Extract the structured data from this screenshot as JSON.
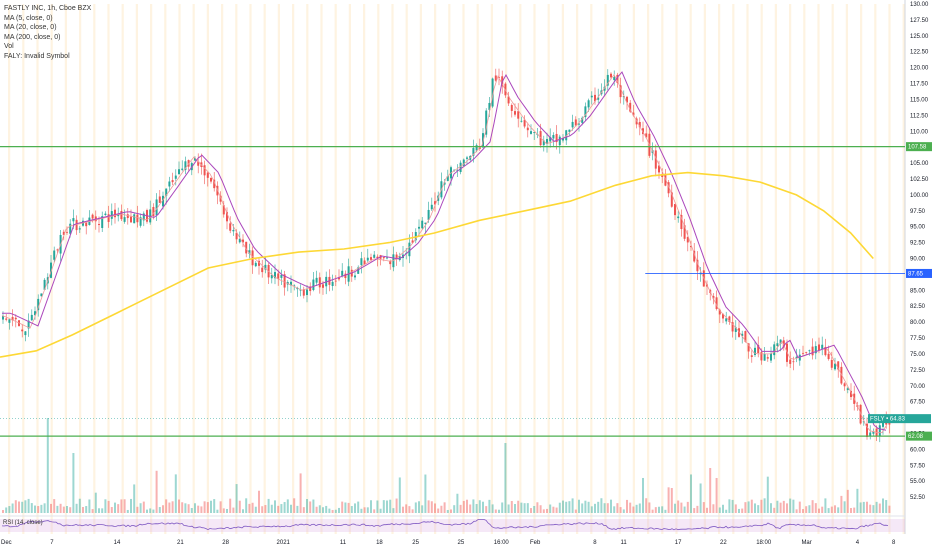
{
  "chart_data": {
    "type": "candlestick",
    "symbol_title": "FASTLY INC, 1h, Cboe BZX",
    "legend": [
      "MA (5, close, 0)",
      "MA (20, close, 0)",
      "MA (200, close, 0)",
      "Vol",
      "FALY: Invalid Symbol"
    ],
    "ylim": [
      50,
      130
    ],
    "price_ticks": [
      "130.00",
      "127.50",
      "125.00",
      "122.50",
      "120.00",
      "117.50",
      "115.00",
      "112.50",
      "110.00",
      "107.50",
      "105.00",
      "102.50",
      "100.00",
      "97.50",
      "95.00",
      "92.50",
      "90.00",
      "87.50",
      "85.00",
      "82.50",
      "80.00",
      "77.50",
      "75.00",
      "72.50",
      "70.00",
      "67.50",
      "65.00",
      "62.50",
      "60.00",
      "57.50",
      "55.00",
      "52.50"
    ],
    "x_ticks": [
      {
        "label": "Dec",
        "pos": 0.0
      },
      {
        "label": "7",
        "pos": 0.06
      },
      {
        "label": "14",
        "pos": 0.13
      },
      {
        "label": "21",
        "pos": 0.2
      },
      {
        "label": "28",
        "pos": 0.25
      },
      {
        "label": "2021",
        "pos": 0.31
      },
      {
        "label": "11",
        "pos": 0.38
      },
      {
        "label": "18",
        "pos": 0.42
      },
      {
        "label": "25",
        "pos": 0.46
      },
      {
        "label": "25",
        "pos": 0.51
      },
      {
        "label": "16:00",
        "pos": 0.55
      },
      {
        "label": "Feb",
        "pos": 0.59
      },
      {
        "label": "8",
        "pos": 0.66
      },
      {
        "label": "11",
        "pos": 0.69
      },
      {
        "label": "17",
        "pos": 0.75
      },
      {
        "label": "22",
        "pos": 0.8
      },
      {
        "label": "18:00",
        "pos": 0.84
      },
      {
        "label": "Mar",
        "pos": 0.89
      },
      {
        "label": "4",
        "pos": 0.95
      },
      {
        "label": "8",
        "pos": 0.99
      }
    ],
    "horizontal_levels": [
      {
        "value": 107.58,
        "label": "107.58",
        "color": "#4caf50"
      },
      {
        "value": 87.65,
        "label": "87.65",
        "color": "#2962ff"
      },
      {
        "value": 62.08,
        "label": "62.08",
        "color": "#4caf50"
      }
    ],
    "last_price": {
      "value": 64.83,
      "label": "FSLY • 64.83",
      "color": "#26a69a"
    },
    "close_path": [
      [
        0.0,
        81
      ],
      [
        0.03,
        79
      ],
      [
        0.05,
        87
      ],
      [
        0.07,
        95
      ],
      [
        0.1,
        96
      ],
      [
        0.13,
        97
      ],
      [
        0.16,
        96
      ],
      [
        0.19,
        102
      ],
      [
        0.21,
        106
      ],
      [
        0.23,
        103
      ],
      [
        0.25,
        96
      ],
      [
        0.27,
        91
      ],
      [
        0.3,
        87
      ],
      [
        0.33,
        85
      ],
      [
        0.35,
        86
      ],
      [
        0.38,
        87.5
      ],
      [
        0.41,
        90
      ],
      [
        0.43,
        89.5
      ],
      [
        0.45,
        92
      ],
      [
        0.47,
        96
      ],
      [
        0.49,
        103
      ],
      [
        0.51,
        105
      ],
      [
        0.53,
        108
      ],
      [
        0.545,
        119
      ],
      [
        0.56,
        115
      ],
      [
        0.58,
        111
      ],
      [
        0.6,
        108
      ],
      [
        0.62,
        109
      ],
      [
        0.64,
        112
      ],
      [
        0.66,
        116
      ],
      [
        0.675,
        119
      ],
      [
        0.69,
        114
      ],
      [
        0.71,
        109
      ],
      [
        0.73,
        103
      ],
      [
        0.75,
        96
      ],
      [
        0.77,
        88
      ],
      [
        0.79,
        82
      ],
      [
        0.81,
        79
      ],
      [
        0.83,
        75
      ],
      [
        0.85,
        75
      ],
      [
        0.86,
        77
      ],
      [
        0.87,
        74
      ],
      [
        0.89,
        75
      ],
      [
        0.91,
        76
      ],
      [
        0.925,
        72
      ],
      [
        0.94,
        68
      ],
      [
        0.955,
        63
      ],
      [
        0.97,
        62.5
      ],
      [
        0.98,
        64.83
      ]
    ],
    "ma200_path": [
      [
        0.0,
        74.5
      ],
      [
        0.04,
        75.5
      ],
      [
        0.08,
        78
      ],
      [
        0.13,
        81.5
      ],
      [
        0.18,
        85
      ],
      [
        0.23,
        88.5
      ],
      [
        0.28,
        90
      ],
      [
        0.33,
        91
      ],
      [
        0.38,
        91.5
      ],
      [
        0.43,
        92.5
      ],
      [
        0.48,
        94
      ],
      [
        0.53,
        96
      ],
      [
        0.58,
        97.5
      ],
      [
        0.63,
        99
      ],
      [
        0.68,
        101.5
      ],
      [
        0.72,
        103
      ],
      [
        0.76,
        103.5
      ],
      [
        0.8,
        103
      ],
      [
        0.84,
        102
      ],
      [
        0.88,
        100
      ],
      [
        0.91,
        97.5
      ],
      [
        0.94,
        94
      ],
      [
        0.965,
        90
      ]
    ],
    "rsi_label": "RSI (14, close)",
    "colors": {
      "up": "#26a69a",
      "down": "#ef5350",
      "ma_fast": "#ef9a9a",
      "ma_mid": "#ab47bc",
      "ma200": "#fdd835",
      "rsi": "#7e57c2",
      "session_band": "#fde9c8"
    }
  }
}
